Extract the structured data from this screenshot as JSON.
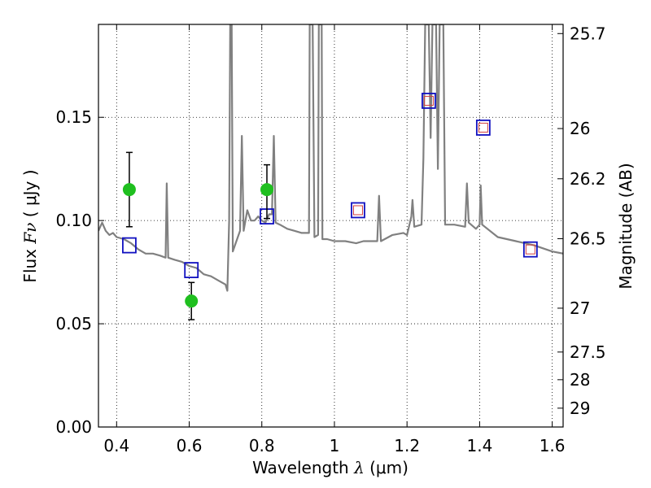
{
  "chart_data": {
    "type": "scatter",
    "title": "",
    "xlabel": "Wavelength  λ (μm)",
    "xlabel_parts": {
      "text": "Wavelength  ",
      "math": "λ",
      "tail": " (μm)"
    },
    "ylabel": "Flux  Fν ( μJy )",
    "ylabel_parts": {
      "text": "Flux  ",
      "math": "Fν",
      "tail": "  ( μJy )"
    },
    "y2label": "Magnitude (AB)",
    "xlim": [
      0.35,
      1.63
    ],
    "ylim": [
      0.0,
      0.195
    ],
    "x_ticks": [
      0.4,
      0.6,
      0.8,
      1.0,
      1.2,
      1.4,
      1.6
    ],
    "x_tick_labels": [
      "0.4",
      "0.6",
      "0.8",
      "1",
      "1.2",
      "1.4",
      "1.6"
    ],
    "y_ticks": [
      0.0,
      0.05,
      0.1,
      0.15
    ],
    "y_tick_labels": [
      "0.00",
      "0.05",
      "0.10",
      "0.15"
    ],
    "y2_ticks": [
      {
        "value": 25.7,
        "label": "25.7"
      },
      {
        "value": 26.0,
        "label": "26"
      },
      {
        "value": 26.2,
        "label": "26.2"
      },
      {
        "value": 26.5,
        "label": "26.5"
      },
      {
        "value": 27.0,
        "label": "27"
      },
      {
        "value": 27.5,
        "label": "27.5"
      },
      {
        "value": 28.0,
        "label": "28"
      },
      {
        "value": 29.0,
        "label": "29"
      }
    ],
    "grid": true,
    "colors": {
      "spectrum": "#808080",
      "observed": "#1fbf1f",
      "model_box": "#1010c0",
      "model_inner": "#d04040",
      "errorbar": "#000000"
    },
    "series": [
      {
        "role": "model spectrum (line)",
        "points": [
          [
            0.35,
            0.095
          ],
          [
            0.36,
            0.099
          ],
          [
            0.37,
            0.095
          ],
          [
            0.38,
            0.093
          ],
          [
            0.39,
            0.094
          ],
          [
            0.4,
            0.092
          ],
          [
            0.42,
            0.091
          ],
          [
            0.44,
            0.089
          ],
          [
            0.46,
            0.086
          ],
          [
            0.48,
            0.084
          ],
          [
            0.5,
            0.084
          ],
          [
            0.52,
            0.083
          ],
          [
            0.535,
            0.082
          ],
          [
            0.538,
            0.118
          ],
          [
            0.542,
            0.082
          ],
          [
            0.56,
            0.081
          ],
          [
            0.58,
            0.08
          ],
          [
            0.6,
            0.078
          ],
          [
            0.62,
            0.077
          ],
          [
            0.64,
            0.074
          ],
          [
            0.66,
            0.073
          ],
          [
            0.68,
            0.071
          ],
          [
            0.7,
            0.069
          ],
          [
            0.705,
            0.066
          ],
          [
            0.71,
            0.1
          ],
          [
            0.713,
            0.195
          ],
          [
            0.717,
            0.195
          ],
          [
            0.72,
            0.085
          ],
          [
            0.73,
            0.09
          ],
          [
            0.74,
            0.095
          ],
          [
            0.745,
            0.141
          ],
          [
            0.75,
            0.095
          ],
          [
            0.76,
            0.105
          ],
          [
            0.77,
            0.1
          ],
          [
            0.78,
            0.1
          ],
          [
            0.79,
            0.102
          ],
          [
            0.8,
            0.1
          ],
          [
            0.81,
            0.099
          ],
          [
            0.82,
            0.103
          ],
          [
            0.828,
            0.103
          ],
          [
            0.833,
            0.141
          ],
          [
            0.838,
            0.099
          ],
          [
            0.85,
            0.098
          ],
          [
            0.87,
            0.096
          ],
          [
            0.89,
            0.095
          ],
          [
            0.91,
            0.094
          ],
          [
            0.93,
            0.094
          ],
          [
            0.932,
            0.195
          ],
          [
            0.94,
            0.195
          ],
          [
            0.945,
            0.092
          ],
          [
            0.955,
            0.093
          ],
          [
            0.957,
            0.195
          ],
          [
            0.965,
            0.195
          ],
          [
            0.967,
            0.091
          ],
          [
            0.98,
            0.091
          ],
          [
            1.0,
            0.09
          ],
          [
            1.03,
            0.09
          ],
          [
            1.06,
            0.089
          ],
          [
            1.08,
            0.09
          ],
          [
            1.1,
            0.09
          ],
          [
            1.118,
            0.09
          ],
          [
            1.123,
            0.112
          ],
          [
            1.128,
            0.09
          ],
          [
            1.16,
            0.093
          ],
          [
            1.19,
            0.094
          ],
          [
            1.2,
            0.093
          ],
          [
            1.212,
            0.102
          ],
          [
            1.215,
            0.11
          ],
          [
            1.22,
            0.097
          ],
          [
            1.24,
            0.098
          ],
          [
            1.245,
            0.13
          ],
          [
            1.25,
            0.195
          ],
          [
            1.26,
            0.195
          ],
          [
            1.265,
            0.14
          ],
          [
            1.27,
            0.195
          ],
          [
            1.28,
            0.195
          ],
          [
            1.285,
            0.125
          ],
          [
            1.29,
            0.195
          ],
          [
            1.3,
            0.195
          ],
          [
            1.305,
            0.098
          ],
          [
            1.33,
            0.098
          ],
          [
            1.36,
            0.097
          ],
          [
            1.365,
            0.118
          ],
          [
            1.37,
            0.099
          ],
          [
            1.39,
            0.096
          ],
          [
            1.4,
            0.098
          ],
          [
            1.403,
            0.117
          ],
          [
            1.407,
            0.098
          ],
          [
            1.45,
            0.092
          ],
          [
            1.5,
            0.09
          ],
          [
            1.55,
            0.088
          ],
          [
            1.6,
            0.085
          ],
          [
            1.63,
            0.084
          ]
        ]
      },
      {
        "role": "observed photometry (green circles with error bars)",
        "points": [
          {
            "x": 0.435,
            "y": 0.115,
            "err_low": 0.097,
            "err_high": 0.133
          },
          {
            "x": 0.606,
            "y": 0.061,
            "err_low": 0.052,
            "err_high": 0.07
          },
          {
            "x": 0.814,
            "y": 0.115,
            "err_low": 0.101,
            "err_high": 0.127
          }
        ]
      },
      {
        "role": "model photometry (blue squares)",
        "points": [
          {
            "x": 0.435,
            "y": 0.088
          },
          {
            "x": 0.606,
            "y": 0.076
          },
          {
            "x": 0.814,
            "y": 0.102
          },
          {
            "x": 1.065,
            "y": 0.105
          },
          {
            "x": 1.26,
            "y": 0.158
          },
          {
            "x": 1.41,
            "y": 0.145
          },
          {
            "x": 1.54,
            "y": 0.086
          }
        ]
      },
      {
        "role": "observed IR photometry (small red squares)",
        "points": [
          {
            "x": 1.065,
            "y": 0.105
          },
          {
            "x": 1.26,
            "y": 0.158
          },
          {
            "x": 1.41,
            "y": 0.145
          },
          {
            "x": 1.54,
            "y": 0.086
          }
        ]
      }
    ]
  }
}
